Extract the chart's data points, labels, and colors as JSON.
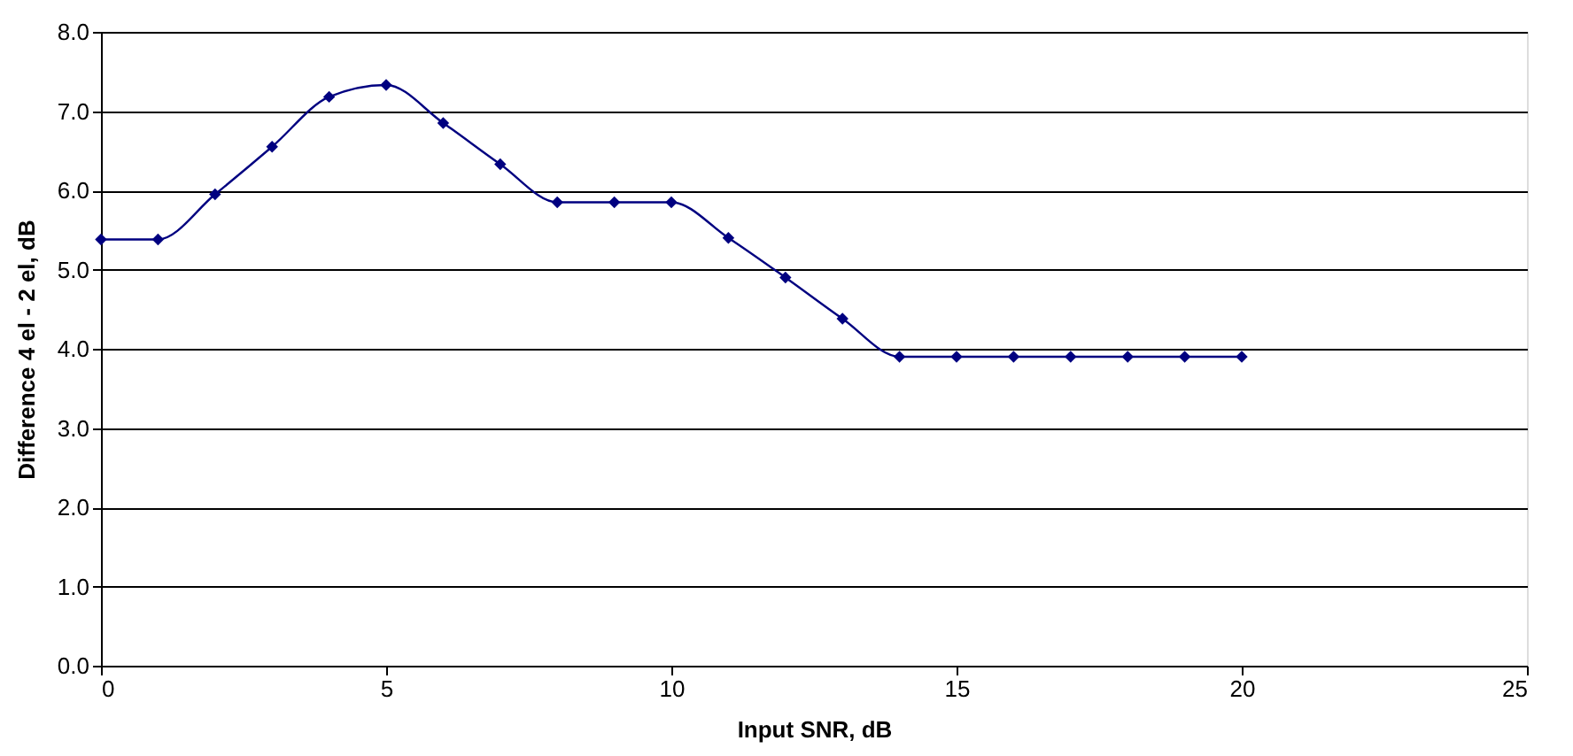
{
  "chart_data": {
    "type": "line",
    "xlabel": "Input SNR, dB",
    "ylabel": "Difference 4 el - 2 el, dB",
    "x": [
      0,
      1,
      2,
      3,
      4,
      5,
      6,
      7,
      8,
      9,
      10,
      11,
      12,
      13,
      14,
      15,
      16,
      17,
      18,
      19,
      20
    ],
    "series": [
      {
        "color": "#000080",
        "values": [
          5.38,
          5.38,
          5.95,
          6.55,
          7.18,
          7.33,
          6.85,
          6.33,
          5.85,
          5.85,
          5.85,
          5.4,
          4.9,
          4.38,
          3.9,
          3.9,
          3.9,
          3.9,
          3.9,
          3.9,
          3.9
        ]
      }
    ],
    "xlim": [
      0,
      25
    ],
    "xticks": [
      0,
      5,
      10,
      15,
      20,
      25
    ],
    "ylim": [
      0,
      8
    ],
    "yticks": [
      {
        "value": 0,
        "label": "0.0"
      },
      {
        "value": 1,
        "label": "1.0"
      },
      {
        "value": 2,
        "label": "2.0"
      },
      {
        "value": 3,
        "label": "3.0"
      },
      {
        "value": 4,
        "label": "4.0"
      },
      {
        "value": 5,
        "label": "5.0"
      },
      {
        "value": 6,
        "label": "6.0"
      },
      {
        "value": 7,
        "label": "7.0"
      },
      {
        "value": 8,
        "label": "8.0"
      }
    ],
    "grid": "y",
    "marker": "diamond",
    "line_style": "solid",
    "legend": false
  }
}
